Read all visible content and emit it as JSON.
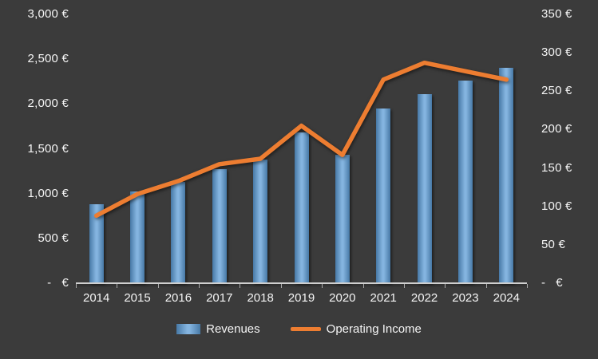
{
  "chart_data": {
    "type": "combo",
    "title": "",
    "categories": [
      "2014",
      "2015",
      "2016",
      "2017",
      "2018",
      "2019",
      "2020",
      "2021",
      "2022",
      "2023",
      "2024"
    ],
    "series": [
      {
        "name": "Revenues",
        "type": "bar",
        "axis": "left",
        "color": "#5B9BD5",
        "values": [
          880,
          1020,
          1130,
          1270,
          1380,
          1680,
          1430,
          1950,
          2110,
          2260,
          2400
        ]
      },
      {
        "name": "Operating Income",
        "type": "line",
        "axis": "right",
        "color": "#ED7D31",
        "values": [
          88,
          116,
          133,
          155,
          162,
          205,
          167,
          265,
          287,
          276,
          265
        ]
      }
    ],
    "left_axis": {
      "min": 0,
      "max": 3000,
      "ticks": [
        "3,000 €",
        "2,500 €",
        "2,000 €",
        "1,500 €",
        "1,000 €",
        "500 €",
        "-   €"
      ]
    },
    "right_axis": {
      "min": 0,
      "max": 350,
      "ticks": [
        "350 €",
        "300 €",
        "250 €",
        "200 €",
        "150 €",
        "100 €",
        "50 €",
        "-   €"
      ]
    },
    "legend_position": "bottom",
    "grid": false,
    "background": "#3B3B3B"
  }
}
